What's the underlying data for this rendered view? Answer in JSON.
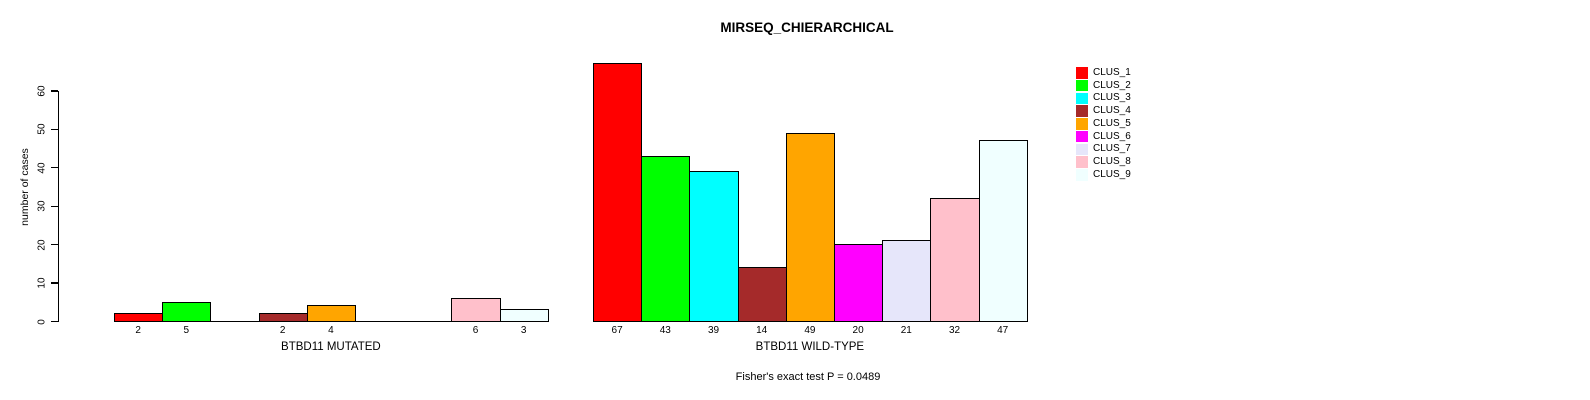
{
  "chart_data": {
    "type": "bar",
    "title": "MIRSEQ_CHIERARCHICAL",
    "ylabel": "number of cases",
    "ylim": [
      0,
      60
    ],
    "yticks": [
      0,
      10,
      20,
      30,
      40,
      50,
      60
    ],
    "grid": false,
    "legend_position": "right",
    "series_labels": [
      "CLUS_1",
      "CLUS_2",
      "CLUS_3",
      "CLUS_4",
      "CLUS_5",
      "CLUS_6",
      "CLUS_7",
      "CLUS_8",
      "CLUS_9"
    ],
    "series_colors": [
      "#ff0000",
      "#00ff00",
      "#00ffff",
      "#a52a2a",
      "#ffa500",
      "#ff00ff",
      "#e6e6fa",
      "#ffc0cb",
      "#f0ffff"
    ],
    "groups": [
      {
        "label": "BTBD11 MUTATED",
        "values": [
          2,
          5,
          0,
          2,
          4,
          0,
          0,
          6,
          3
        ]
      },
      {
        "label": "BTBD11 WILD-TYPE",
        "values": [
          67,
          43,
          39,
          14,
          49,
          20,
          21,
          32,
          47
        ]
      }
    ],
    "footnote": "Fisher's exact test P = 0.0489"
  }
}
